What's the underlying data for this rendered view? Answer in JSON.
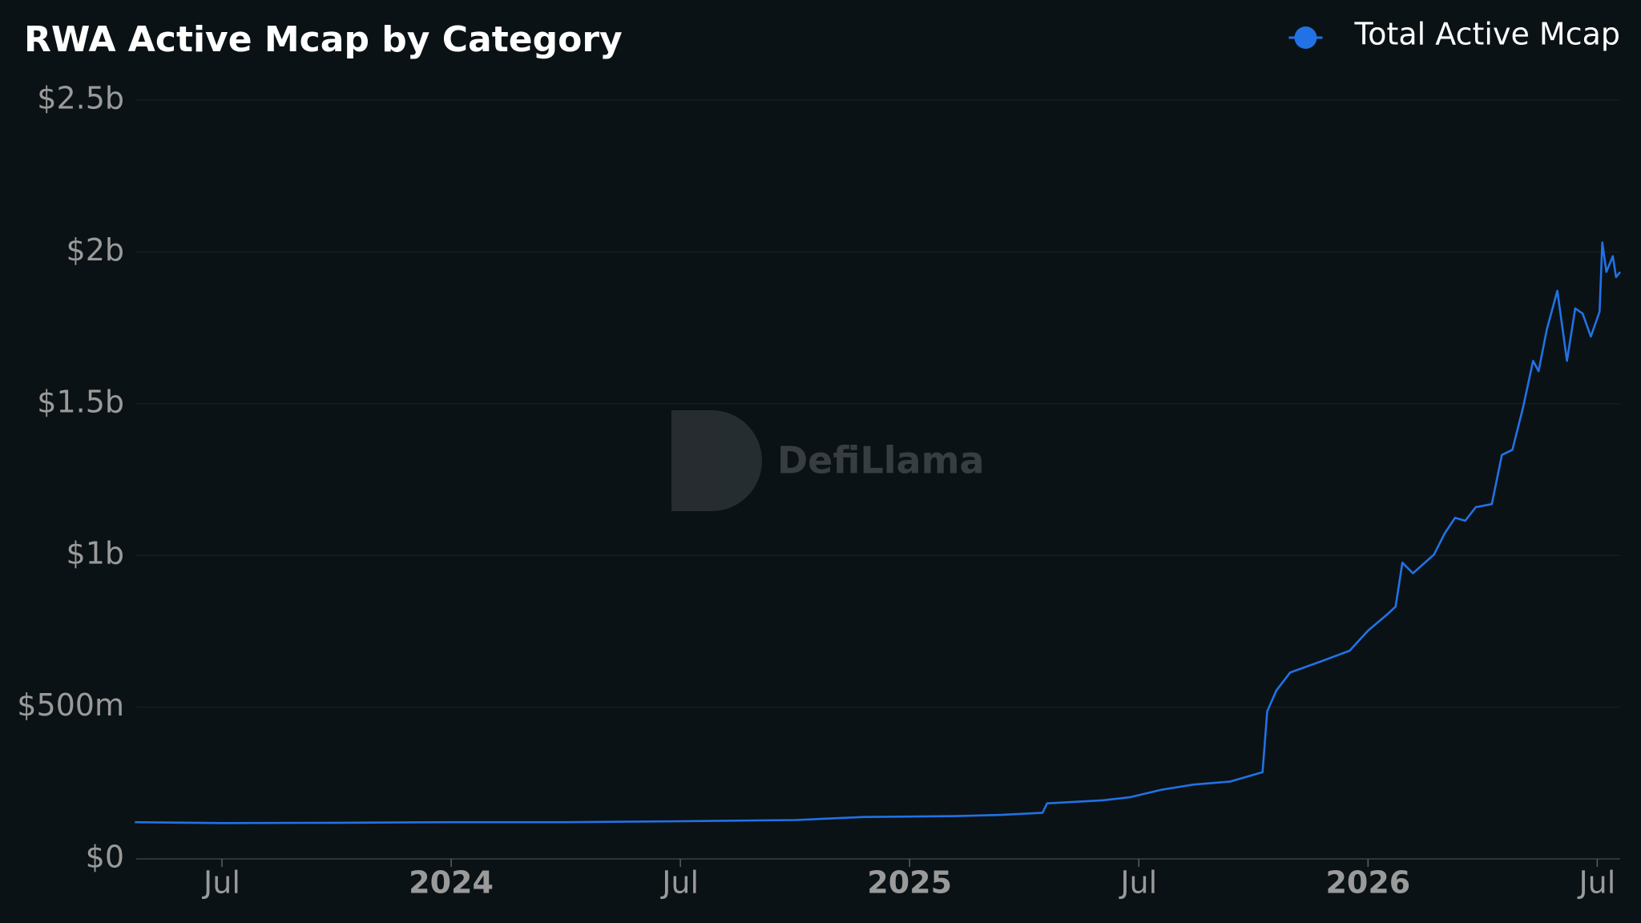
{
  "chart_data": {
    "type": "line",
    "title": "RWA Active Mcap by Category",
    "watermark": "DefiLlama",
    "x": [
      2023.31,
      2023.5,
      2023.75,
      2024.0,
      2024.25,
      2024.5,
      2024.75,
      2024.9,
      2025.1,
      2025.2,
      2025.29,
      2025.3,
      2025.42,
      2025.48,
      2025.55,
      2025.62,
      2025.7,
      2025.77,
      2025.78,
      2025.8,
      2025.83,
      2025.9,
      2025.96,
      2026.0,
      2026.04,
      2026.06,
      2026.075,
      2026.098,
      2026.144,
      2026.167,
      2026.19,
      2026.212,
      2026.235,
      2026.27,
      2026.292,
      2026.315,
      2026.338,
      2026.36,
      2026.372,
      2026.39,
      2026.413,
      2026.434,
      2026.452,
      2026.468,
      2026.486,
      2026.505,
      2026.511,
      2026.52,
      2026.534,
      2026.541,
      2026.55
    ],
    "series": [
      {
        "name": "Total Active Mcap",
        "color": "#2172e5",
        "values": [
          121000000,
          118000000,
          119000000,
          121000000,
          121000000,
          124000000,
          128000000,
          138000000,
          141000000,
          145000000,
          152000000,
          183000000,
          193000000,
          203000000,
          228000000,
          245000000,
          255000000,
          286000000,
          486000000,
          555000000,
          614000000,
          652000000,
          686000000,
          752000000,
          803000000,
          831000000,
          976000000,
          941000000,
          1003000000,
          1072000000,
          1124000000,
          1114000000,
          1159000000,
          1169000000,
          1331000000,
          1348000000,
          1486000000,
          1641000000,
          1607000000,
          1745000000,
          1872000000,
          1641000000,
          1814000000,
          1797000000,
          1721000000,
          1803000000,
          2031000000,
          1934000000,
          1986000000,
          1917000000,
          1934000000
        ]
      }
    ],
    "xlim": [
      2023.313,
      2026.55
    ],
    "xticks": [
      {
        "value": 2023.5,
        "label": "Jul"
      },
      {
        "value": 2024,
        "label": "2024"
      },
      {
        "value": 2024.5,
        "label": "Jul"
      },
      {
        "value": 2025,
        "label": "2025"
      },
      {
        "value": 2025.5,
        "label": "Jul"
      },
      {
        "value": 2026,
        "label": "2026"
      },
      {
        "value": 2026.5,
        "label": "Jul"
      }
    ],
    "ylim": [
      0,
      2500000000
    ],
    "yticks": [
      {
        "value": 0,
        "label": "$0"
      },
      {
        "value": 500000000,
        "label": "$500m"
      },
      {
        "value": 1000000000,
        "label": "$1b"
      },
      {
        "value": 1500000000,
        "label": "$1.5b"
      },
      {
        "value": 2000000000,
        "label": "$2b"
      },
      {
        "value": 2500000000,
        "label": "$2.5b"
      }
    ],
    "grid": true,
    "legend": "top-right"
  }
}
